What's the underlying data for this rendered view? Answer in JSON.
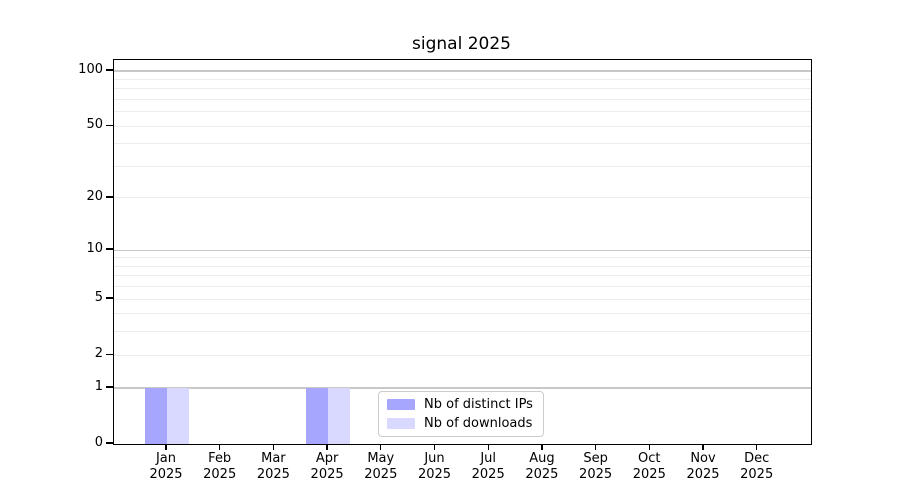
{
  "title": "signal 2025",
  "legend": {
    "items": [
      {
        "label": "Nb of distinct IPs",
        "color": "#a6a6ff"
      },
      {
        "label": "Nb of downloads",
        "color": "#d9d9ff"
      }
    ]
  },
  "colors": {
    "bar_distinct_ips": "#a6a6ff",
    "bar_downloads": "#d9d9ff",
    "grid_major": "#c8c8c8",
    "grid_minor": "#ececec",
    "spine": "#000000",
    "background": "#ffffff"
  },
  "chart_data": {
    "type": "bar",
    "title": "signal 2025",
    "categories": [
      "Jan 2025",
      "Feb 2025",
      "Mar 2025",
      "Apr 2025",
      "May 2025",
      "Jun 2025",
      "Jul 2025",
      "Aug 2025",
      "Sep 2025",
      "Oct 2025",
      "Nov 2025",
      "Dec 2025"
    ],
    "series": [
      {
        "name": "Nb of distinct IPs",
        "color": "#a6a6ff",
        "values": [
          1,
          0,
          0,
          1,
          0,
          0,
          0,
          0,
          0,
          0,
          0,
          0
        ]
      },
      {
        "name": "Nb of downloads",
        "color": "#d9d9ff",
        "values": [
          1,
          0,
          0,
          1,
          0,
          0,
          0,
          0,
          0,
          0,
          0,
          0
        ]
      }
    ],
    "xlabel": "",
    "ylabel": "",
    "yscale": "log1p",
    "ylim": [
      0,
      100
    ],
    "yticks": [
      0,
      1,
      2,
      5,
      10,
      20,
      50,
      100
    ],
    "yticklabels": [
      "0",
      "1",
      "2",
      "5",
      "10",
      "20",
      "50",
      "100"
    ],
    "grid": true,
    "grid_major_values": [
      1,
      10,
      100
    ],
    "grid_minor_values": [
      2,
      3,
      4,
      5,
      6,
      7,
      8,
      9,
      20,
      30,
      40,
      50,
      60,
      70,
      80,
      90
    ],
    "legend_position": "lower center"
  }
}
